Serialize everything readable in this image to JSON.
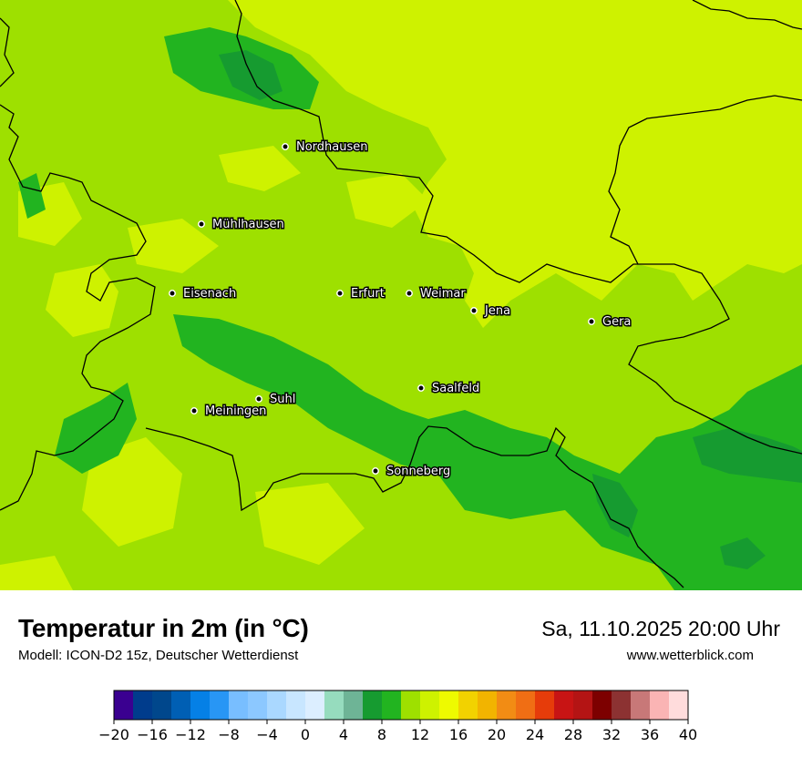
{
  "map": {
    "cities": [
      {
        "name": "Nordhausen"
      },
      {
        "name": "Mühlhausen"
      },
      {
        "name": "Eisenach"
      },
      {
        "name": "Erfurt"
      },
      {
        "name": "Weimar"
      },
      {
        "name": "Jena"
      },
      {
        "name": "Gera"
      },
      {
        "name": "Saalfeld"
      },
      {
        "name": "Suhl"
      },
      {
        "name": "Meiningen"
      },
      {
        "name": "Sonneberg"
      }
    ],
    "colors": {
      "t8": "#169B30",
      "t10": "#22B420",
      "t12": "#9EE000",
      "t14": "#CEF200",
      "border": "#000000"
    }
  },
  "footer": {
    "title": "Temperatur in 2m (in °C)",
    "subtitle": "Modell: ICON-D2 15z, Deutscher Wetterdienst",
    "date": "Sa, 11.10.2025 20:00 Uhr",
    "url": "www.wetterblick.com"
  },
  "colorbar": {
    "ticks": [
      "−20",
      "−16",
      "−12",
      "−8",
      "−4",
      "0",
      "4",
      "8",
      "12",
      "16",
      "20",
      "24",
      "28",
      "32",
      "36",
      "40"
    ],
    "colors": [
      "#3A0090",
      "#003C8C",
      "#00478C",
      "#005FB4",
      "#0580E6",
      "#2896F5",
      "#78BEFF",
      "#8CC8FF",
      "#AAD8FF",
      "#C8E6FF",
      "#DCEEFF",
      "#96DCBE",
      "#6EB496",
      "#169B30",
      "#22B420",
      "#9EE000",
      "#CEF200",
      "#EEFA00",
      "#F2D200",
      "#F2B400",
      "#F28C14",
      "#F06E14",
      "#E63C0A",
      "#C81414",
      "#B41414",
      "#7D0000",
      "#8C3232",
      "#C87878",
      "#FAB4B4",
      "#FFDCDC"
    ]
  }
}
